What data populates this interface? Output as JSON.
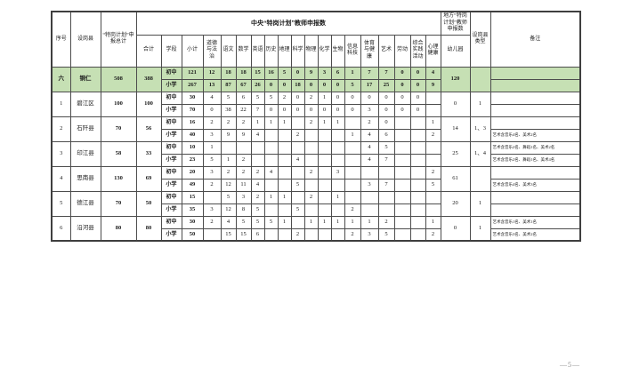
{
  "page": {
    "footer": "—5—"
  },
  "colors": {
    "highlight": "#c6e0b4",
    "border": "#4d4d4d"
  },
  "header": {
    "xuhao": "序号",
    "county": "设岗县",
    "total": "“特岗计划”申报总计",
    "central_group": "中央“特岗计划”教师申报数",
    "heji": "合计",
    "xueduan": "学段",
    "xiaoji": "小计",
    "subjects": [
      "道德与法治",
      "语文",
      "数学",
      "英语",
      "历史",
      "地理",
      "科学",
      "物理",
      "化学",
      "生物",
      "信息科技",
      "体育与健康",
      "艺术",
      "劳动",
      "综合实践活动",
      "心理健康"
    ],
    "local_group": "地方“特岗计划”教师申报数",
    "kindergarten": "幼儿园",
    "county_type": "设岗县类型",
    "remark": "备注"
  },
  "rows": [
    {
      "index": "六",
      "county": "铜仁",
      "total": "508",
      "heji": "388",
      "highlight": true,
      "kindergarten": "120",
      "type": "",
      "stages": [
        {
          "stage": "初中",
          "subtotal": "121",
          "values": [
            "12",
            "18",
            "18",
            "15",
            "16",
            "5",
            "0",
            "9",
            "3",
            "6",
            "1",
            "7",
            "7",
            "0",
            "0",
            "4"
          ],
          "remark": ""
        },
        {
          "stage": "小学",
          "subtotal": "267",
          "values": [
            "13",
            "87",
            "67",
            "26",
            "0",
            "0",
            "18",
            "0",
            "0",
            "0",
            "5",
            "17",
            "25",
            "0",
            "0",
            "9"
          ],
          "remark": ""
        }
      ]
    },
    {
      "index": "1",
      "county": "碧江区",
      "total": "100",
      "heji": "100",
      "highlight": false,
      "kindergarten": "0",
      "type": "1",
      "stages": [
        {
          "stage": "初中",
          "subtotal": "30",
          "values": [
            "4",
            "5",
            "6",
            "5",
            "5",
            "2",
            "0",
            "2",
            "1",
            "0",
            "0",
            "0",
            "0",
            "0",
            "0",
            ""
          ],
          "remark": ""
        },
        {
          "stage": "小学",
          "subtotal": "70",
          "values": [
            "0",
            "38",
            "22",
            "7",
            "0",
            "0",
            "0",
            "0",
            "0",
            "0",
            "0",
            "3",
            "0",
            "0",
            "0",
            ""
          ],
          "remark": ""
        }
      ]
    },
    {
      "index": "2",
      "county": "石阡县",
      "total": "70",
      "heji": "56",
      "highlight": false,
      "kindergarten": "14",
      "type": "1、3",
      "stages": [
        {
          "stage": "初中",
          "subtotal": "16",
          "values": [
            "2",
            "2",
            "2",
            "1",
            "1",
            "1",
            "",
            "2",
            "1",
            "1",
            "",
            "2",
            "0",
            "",
            "",
            "1"
          ],
          "remark": ""
        },
        {
          "stage": "小学",
          "subtotal": "40",
          "values": [
            "3",
            "9",
            "9",
            "4",
            "",
            "",
            "2",
            "",
            "",
            "",
            "1",
            "4",
            "6",
            "",
            "",
            "2"
          ],
          "remark": "艺术含音乐4名、美术2名"
        }
      ]
    },
    {
      "index": "3",
      "county": "印江县",
      "total": "58",
      "heji": "33",
      "highlight": false,
      "kindergarten": "25",
      "type": "1、4",
      "stages": [
        {
          "stage": "初中",
          "subtotal": "10",
          "values": [
            "1",
            "",
            "",
            "",
            "",
            "",
            "",
            "",
            "",
            "",
            "",
            "4",
            "5",
            "",
            "",
            ""
          ],
          "remark": "艺术含音乐2名、舞蹈1名、美术2名"
        },
        {
          "stage": "小学",
          "subtotal": "23",
          "values": [
            "5",
            "1",
            "2",
            "",
            "",
            "",
            "4",
            "",
            "",
            "",
            "",
            "4",
            "7",
            "",
            "",
            ""
          ],
          "remark": "艺术含音乐2名、舞蹈1名、美术4名"
        }
      ]
    },
    {
      "index": "4",
      "county": "思南县",
      "total": "130",
      "heji": "69",
      "highlight": false,
      "kindergarten": "61",
      "type": "",
      "stages": [
        {
          "stage": "初中",
          "subtotal": "20",
          "values": [
            "3",
            "2",
            "2",
            "2",
            "4",
            "",
            "",
            "2",
            "",
            "3",
            "",
            "",
            "",
            "",
            "",
            "2"
          ],
          "remark": ""
        },
        {
          "stage": "小学",
          "subtotal": "49",
          "values": [
            "2",
            "12",
            "11",
            "4",
            "",
            "",
            "5",
            "",
            "",
            "",
            "",
            "3",
            "7",
            "",
            "",
            "5"
          ],
          "remark": "艺术含音乐4名、美术3名"
        }
      ]
    },
    {
      "index": "5",
      "county": "德江县",
      "total": "70",
      "heji": "50",
      "highlight": false,
      "kindergarten": "20",
      "type": "1",
      "stages": [
        {
          "stage": "初中",
          "subtotal": "15",
          "values": [
            "",
            "5",
            "3",
            "2",
            "1",
            "1",
            "",
            "2",
            "",
            "1",
            "",
            "",
            "",
            "",
            "",
            ""
          ],
          "remark": ""
        },
        {
          "stage": "小学",
          "subtotal": "35",
          "values": [
            "3",
            "12",
            "8",
            "5",
            "",
            "",
            "5",
            "",
            "",
            "",
            "2",
            "",
            "",
            "",
            "",
            ""
          ],
          "remark": ""
        }
      ]
    },
    {
      "index": "6",
      "county": "沿河县",
      "total": "80",
      "heji": "80",
      "highlight": false,
      "kindergarten": "0",
      "type": "1",
      "stages": [
        {
          "stage": "初中",
          "subtotal": "30",
          "values": [
            "2",
            "4",
            "5",
            "5",
            "5",
            "1",
            "",
            "1",
            "1",
            "1",
            "1",
            "1",
            "2",
            "",
            "",
            "1"
          ],
          "remark": "艺术含音乐1名、美术1名"
        },
        {
          "stage": "小学",
          "subtotal": "50",
          "values": [
            "",
            "15",
            "15",
            "6",
            "",
            "",
            "2",
            "",
            "",
            "",
            "2",
            "3",
            "5",
            "",
            "",
            "2"
          ],
          "remark": "艺术含音乐3名、美术2名"
        }
      ]
    }
  ]
}
